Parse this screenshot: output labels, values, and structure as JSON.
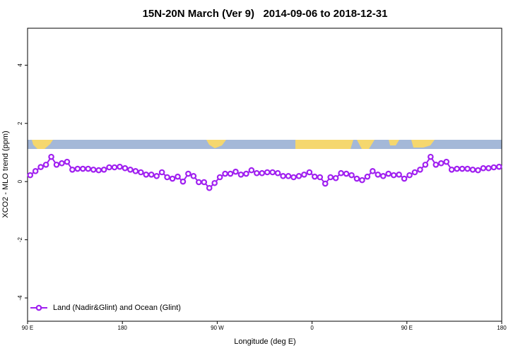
{
  "chart_data": {
    "type": "line",
    "title": "15N-20N March (Ver 9)   2014-09-06 to 2018-12-31",
    "xlabel": "Longitude (deg E)",
    "ylabel": "XCO2 - MLO trend (ppm)",
    "xlim": [
      90,
      540
    ],
    "ylim": [
      -4.8,
      5.27
    ],
    "xticks": [
      {
        "value": 90,
        "label": "90 E"
      },
      {
        "value": 180,
        "label": "180"
      },
      {
        "value": 270,
        "label": "90 W"
      },
      {
        "value": 360,
        "label": "0"
      },
      {
        "value": 450,
        "label": "90 E"
      },
      {
        "value": 540,
        "label": "180"
      }
    ],
    "yticks": [
      4,
      2,
      0,
      -2,
      -4
    ],
    "legend": "bottom-left",
    "x": [
      92.5,
      97.5,
      102.5,
      107.5,
      112.5,
      117.5,
      122.5,
      127.5,
      132.5,
      137.5,
      142.5,
      147.5,
      152.5,
      157.5,
      162.5,
      167.5,
      172.5,
      177.5,
      182.5,
      187.5,
      192.5,
      197.5,
      202.5,
      207.5,
      212.5,
      217.5,
      222.5,
      227.5,
      232.5,
      237.5,
      242.5,
      247.5,
      252.5,
      257.5,
      262.5,
      267.5,
      272.5,
      277.5,
      282.5,
      287.5,
      292.5,
      297.5,
      302.5,
      307.5,
      312.5,
      317.5,
      322.5,
      327.5,
      332.5,
      337.5,
      342.5,
      347.5,
      352.5,
      357.5,
      362.5,
      367.5,
      372.5,
      377.5,
      382.5,
      387.5,
      392.5,
      397.5,
      402.5,
      407.5,
      412.5,
      417.5,
      422.5,
      427.5,
      432.5,
      437.5,
      442.5,
      447.5,
      452.5,
      457.5,
      462.5,
      467.5,
      472.5,
      477.5,
      482.5,
      487.5,
      492.5,
      497.5,
      502.5,
      507.5,
      512.5,
      517.5,
      522.5,
      527.5,
      532.5,
      537.5
    ],
    "series": [
      {
        "name": "Land (Nadir&Glint) and Ocean (Glint)",
        "color": "#a020f0",
        "values": [
          0.22,
          0.36,
          0.5,
          0.58,
          0.85,
          0.58,
          0.63,
          0.68,
          0.41,
          0.44,
          0.44,
          0.44,
          0.41,
          0.39,
          0.41,
          0.49,
          0.49,
          0.51,
          0.46,
          0.41,
          0.36,
          0.32,
          0.24,
          0.24,
          0.19,
          0.32,
          0.15,
          0.1,
          0.17,
          0,
          0.27,
          0.19,
          -0.02,
          -0.02,
          -0.22,
          -0.05,
          0.15,
          0.27,
          0.27,
          0.34,
          0.24,
          0.27,
          0.39,
          0.29,
          0.29,
          0.32,
          0.32,
          0.29,
          0.19,
          0.19,
          0.15,
          0.19,
          0.24,
          0.32,
          0.17,
          0.15,
          -0.07,
          0.15,
          0.12,
          0.29,
          0.27,
          0.22,
          0.1,
          0.05,
          0.17,
          0.36,
          0.24,
          0.19,
          0.27,
          0.22,
          0.24,
          0.1,
          0.22,
          0.32,
          0.41,
          0.58,
          0.85,
          0.58,
          0.63,
          0.68,
          0.41,
          0.44,
          0.44,
          0.44,
          0.41,
          0.39,
          0.46,
          0.46,
          0.49,
          0.51
        ]
      }
    ]
  }
}
